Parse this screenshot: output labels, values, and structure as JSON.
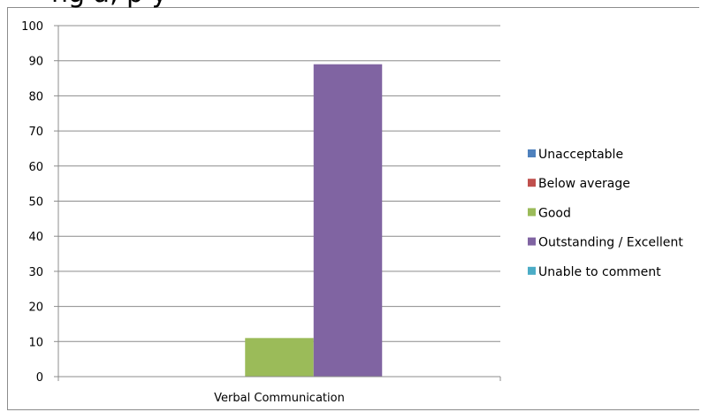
{
  "header": {
    "title_fragment": "ng a, p       y"
  },
  "chart_data": {
    "type": "bar",
    "categories": [
      "Verbal Communication"
    ],
    "series": [
      {
        "name": "Unacceptable",
        "values": [
          0
        ],
        "color": "#4f81bd"
      },
      {
        "name": "Below average",
        "values": [
          0
        ],
        "color": "#c0504d"
      },
      {
        "name": "Good",
        "values": [
          11
        ],
        "color": "#9bbb59"
      },
      {
        "name": "Outstanding / Excellent",
        "values": [
          89
        ],
        "color": "#8064a2"
      },
      {
        "name": "Unable to comment",
        "values": [
          0
        ],
        "color": "#4bacc6"
      }
    ],
    "title": "",
    "xlabel": "",
    "ylabel": "",
    "ylim": [
      0,
      100
    ],
    "yticks": [
      0,
      10,
      20,
      30,
      40,
      50,
      60,
      70,
      80,
      90,
      100
    ],
    "grid": true,
    "legend_position": "right"
  }
}
